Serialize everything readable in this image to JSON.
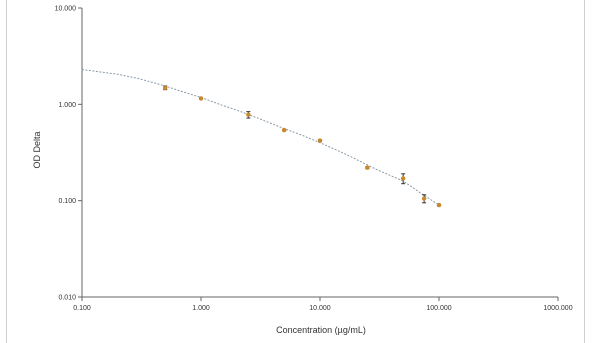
{
  "chart_data": {
    "type": "scatter",
    "xlabel": "Concentration (µg/mL)",
    "ylabel": "OD Delta",
    "x_scale": "log",
    "y_scale": "log",
    "xlim": [
      0.1,
      1000
    ],
    "ylim": [
      0.01,
      10
    ],
    "x_ticks": [
      "0.100",
      "1.000",
      "10.000",
      "100.000",
      "1000.000"
    ],
    "y_ticks": [
      "10.000",
      "1.000",
      "0.100",
      "0.010"
    ],
    "grid": false,
    "legend": "none",
    "colors": {
      "point": "#c8892a",
      "error": "#333333",
      "fit": "#8a9aa8",
      "axis": "#666666"
    },
    "points": [
      {
        "x": 0.5,
        "y": 1.48,
        "y_low": 1.42,
        "y_high": 1.55
      },
      {
        "x": 1.0,
        "y": 1.15,
        "y_low": 1.13,
        "y_high": 1.17
      },
      {
        "x": 2.5,
        "y": 0.78,
        "y_low": 0.72,
        "y_high": 0.84
      },
      {
        "x": 5.0,
        "y": 0.54,
        "y_low": 0.53,
        "y_high": 0.55
      },
      {
        "x": 10.0,
        "y": 0.42,
        "y_low": 0.41,
        "y_high": 0.43
      },
      {
        "x": 25.0,
        "y": 0.22,
        "y_low": 0.215,
        "y_high": 0.225
      },
      {
        "x": 50.0,
        "y": 0.17,
        "y_low": 0.15,
        "y_high": 0.19
      },
      {
        "x": 75.0,
        "y": 0.105,
        "y_low": 0.095,
        "y_high": 0.115
      },
      {
        "x": 100.0,
        "y": 0.09,
        "y_low": 0.088,
        "y_high": 0.092
      }
    ],
    "fit_curve": {
      "x": [
        0.1,
        0.2,
        0.3,
        0.5,
        0.7,
        1.0,
        1.5,
        2.0,
        3.0,
        5.0,
        7.0,
        10.0,
        15.0,
        20.0,
        30.0,
        50.0,
        70.0,
        100.0
      ],
      "y": [
        2.3,
        2.05,
        1.85,
        1.55,
        1.35,
        1.18,
        0.98,
        0.87,
        0.72,
        0.56,
        0.48,
        0.4,
        0.32,
        0.27,
        0.21,
        0.16,
        0.12,
        0.09
      ]
    }
  }
}
